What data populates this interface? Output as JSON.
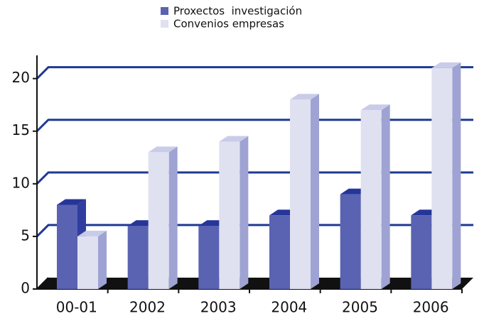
{
  "chart_data": {
    "type": "bar3d",
    "categories": [
      "00-01",
      "2002",
      "2003",
      "2004",
      "2005",
      "2006"
    ],
    "series": [
      {
        "name": "Proxectos  investigación",
        "color": "#5a62b2",
        "top": "#26359a",
        "side": "#2f3e9e",
        "values": [
          8,
          6,
          6,
          7,
          9,
          7
        ]
      },
      {
        "name": "Convenios empresas",
        "color": "#dfe1f1",
        "top": "#c9cce8",
        "side": "#9ea3d3",
        "values": [
          5,
          13,
          14,
          18,
          17,
          21
        ]
      }
    ],
    "ylim": [
      0,
      22
    ],
    "yticks": [
      0,
      5,
      10,
      15,
      20
    ],
    "grid": true,
    "grid_color": "#1f3a93",
    "legend": "top"
  }
}
